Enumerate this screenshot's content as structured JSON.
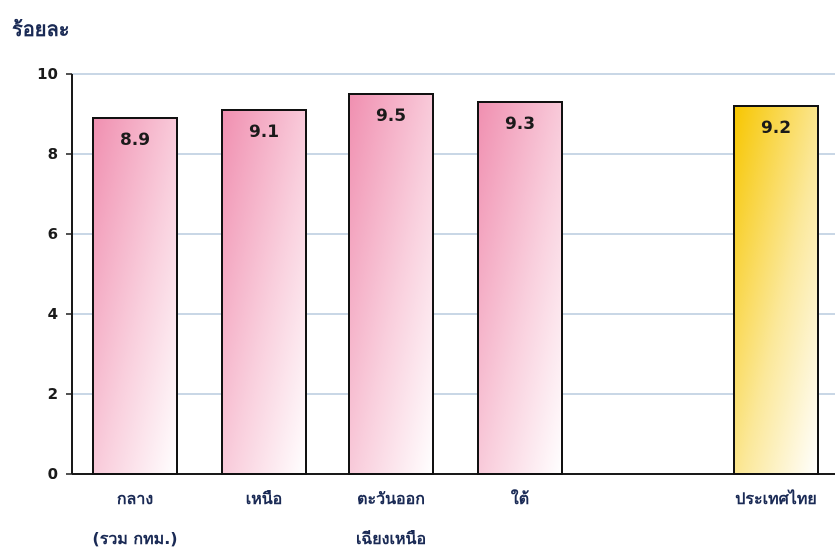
{
  "chart_data": {
    "type": "bar",
    "title": "",
    "ylabel": "ร้อยละ",
    "xlabel": "",
    "ylim": [
      0,
      10
    ],
    "yticks": [
      0,
      2,
      4,
      6,
      8,
      10
    ],
    "grid": true,
    "categories": [
      [
        "กลาง",
        "(รวม กทม.)"
      ],
      [
        "เหนือ"
      ],
      [
        "ตะวันออก",
        "เฉียงเหนือ"
      ],
      [
        "ใต้"
      ],
      [
        "ประเทศไทย"
      ]
    ],
    "values": [
      8.9,
      9.1,
      9.5,
      9.3,
      9.2
    ],
    "data_labels": [
      "8.9",
      "9.1",
      "9.5",
      "9.3",
      "9.2"
    ],
    "colors": {
      "region_bar": "#f08fb0",
      "total_bar": "#f7c600",
      "grid": "#a9bfd6",
      "axis": "#1a1a1a"
    }
  }
}
